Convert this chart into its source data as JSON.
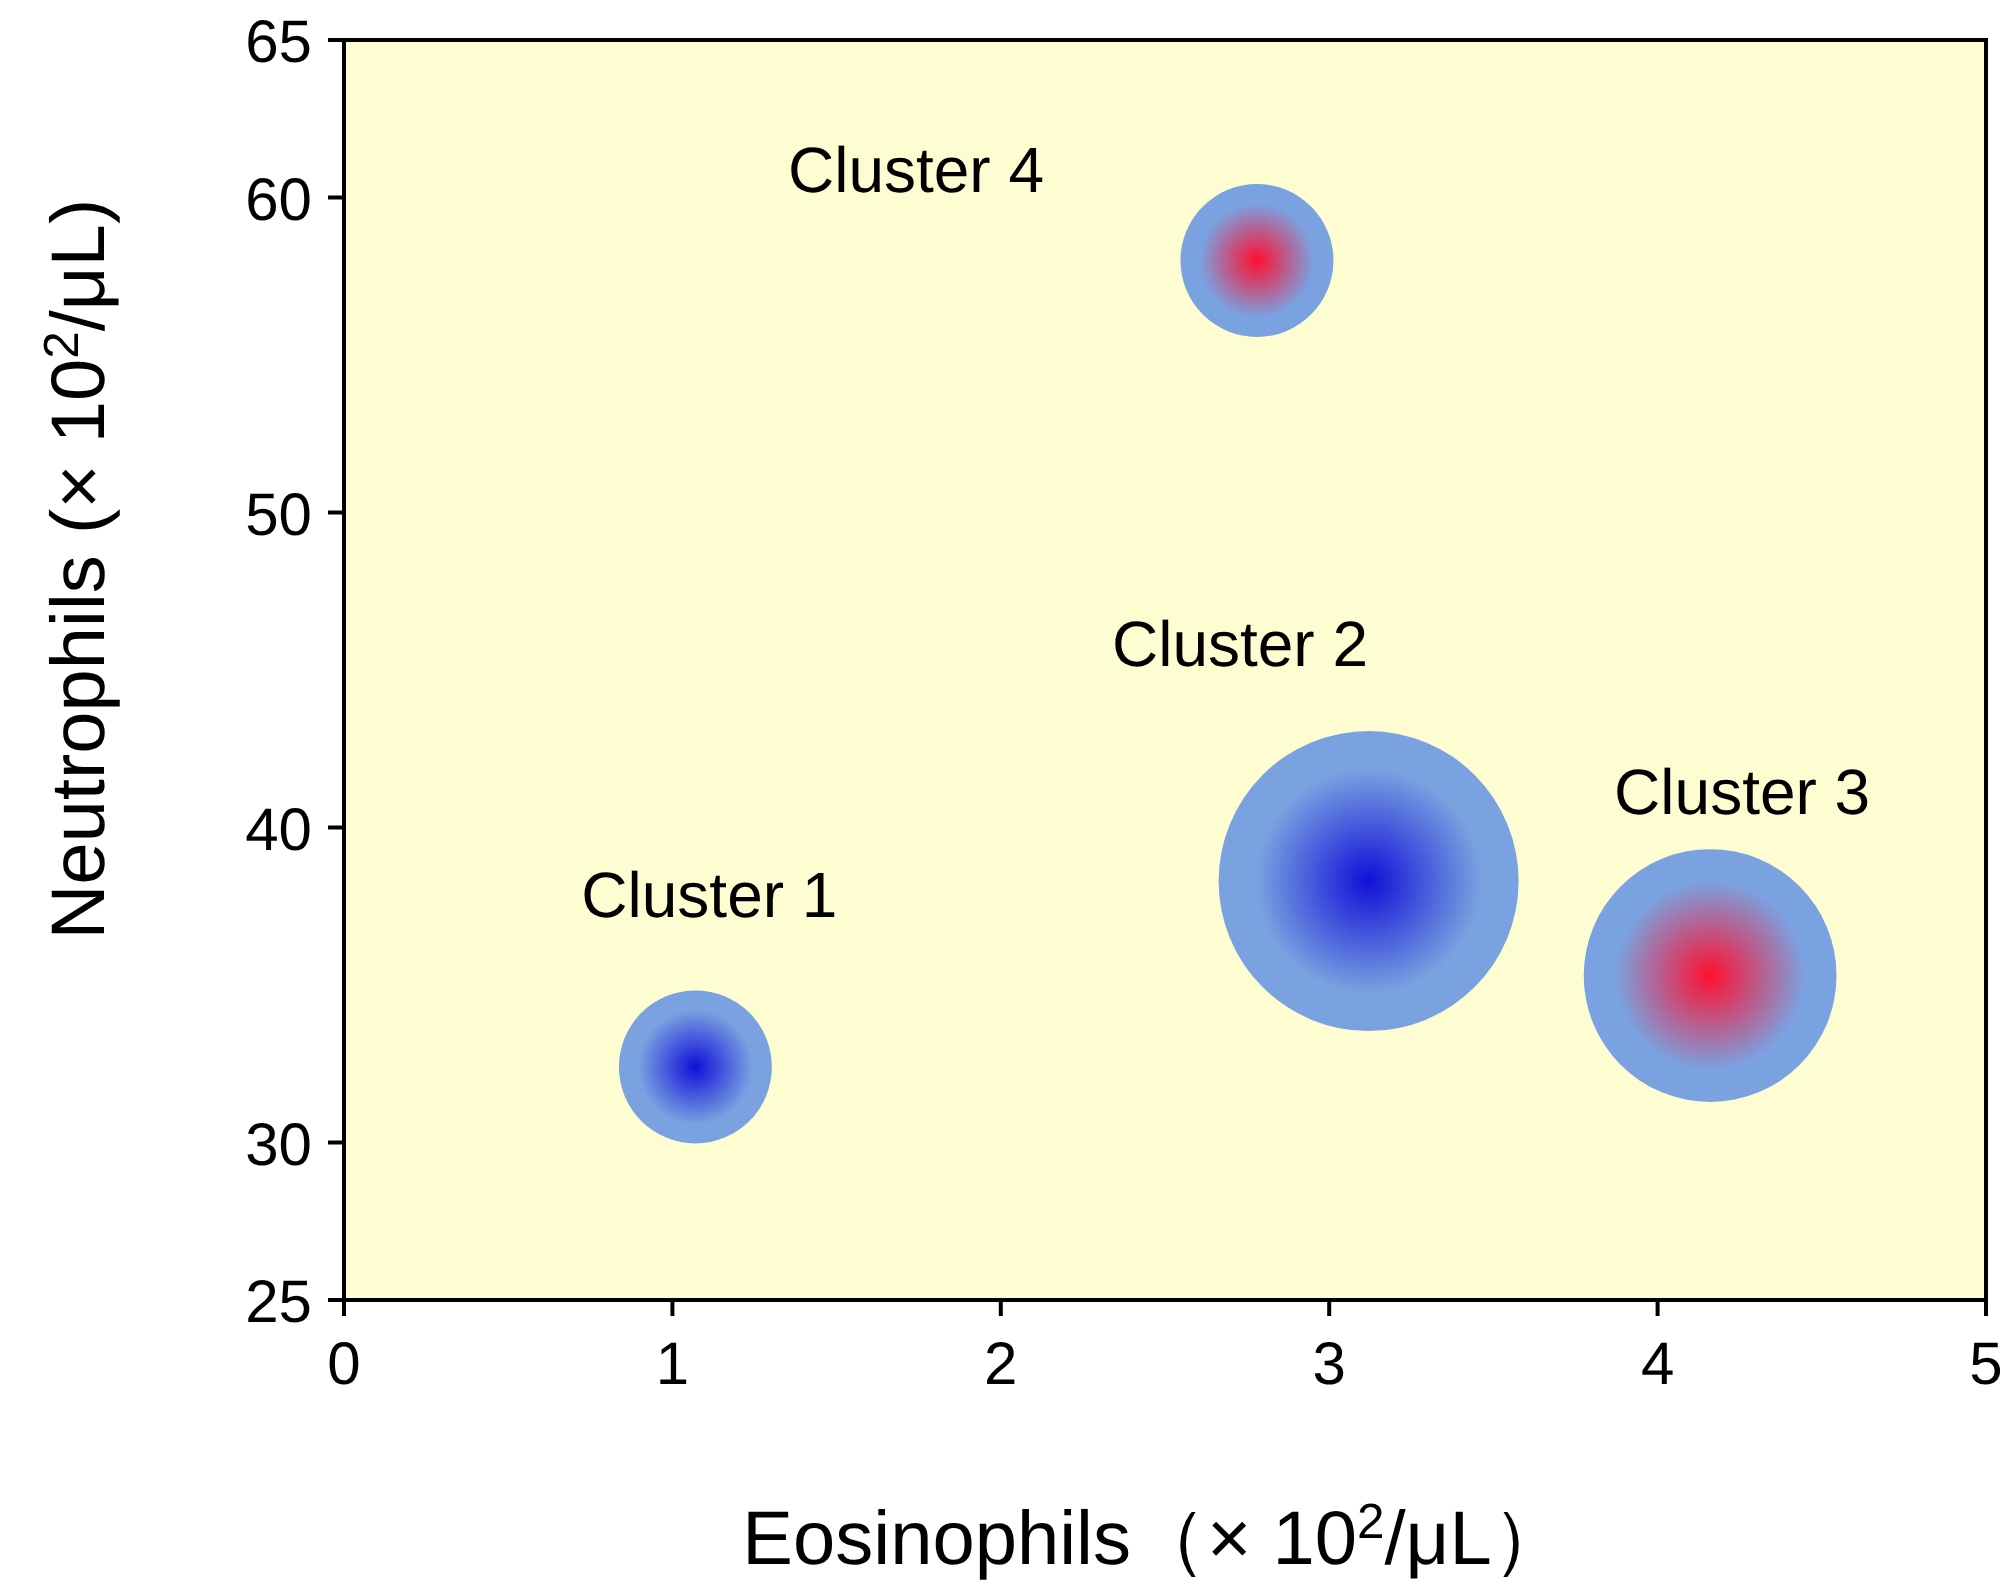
{
  "chart_data": {
    "type": "bubble",
    "x": [
      1.07,
      3.12,
      4.16,
      2.78
    ],
    "values": [
      32.4,
      38.3,
      35.3,
      58.0
    ],
    "sizes": [
      0.26,
      1,
      0.71,
      0.26
    ],
    "colors": [
      "#1010d8",
      "#1010d8",
      "#ff1030",
      "#ff1030"
    ],
    "xlim": [
      0,
      5
    ],
    "ylim": [
      25,
      65
    ],
    "xticks": [
      0,
      1,
      2,
      3,
      4,
      5
    ],
    "yticks": [
      25,
      30,
      40,
      50,
      60,
      65
    ],
    "xlabel": "Eosinophils（× 10$^{2}$/μL）",
    "ylabel": "Neutrophils (× 10$^{2}$/μL)",
    "grid": false,
    "annotations": [
      {
        "text": "Cluster 1",
        "x": 1.07,
        "y": 32.4
      },
      "Cluster 2",
      {
        "text": "Cluster 3",
        "x": 4.16,
        "y": 35.3
      },
      "Cluster 4"
    ]
  }
}
